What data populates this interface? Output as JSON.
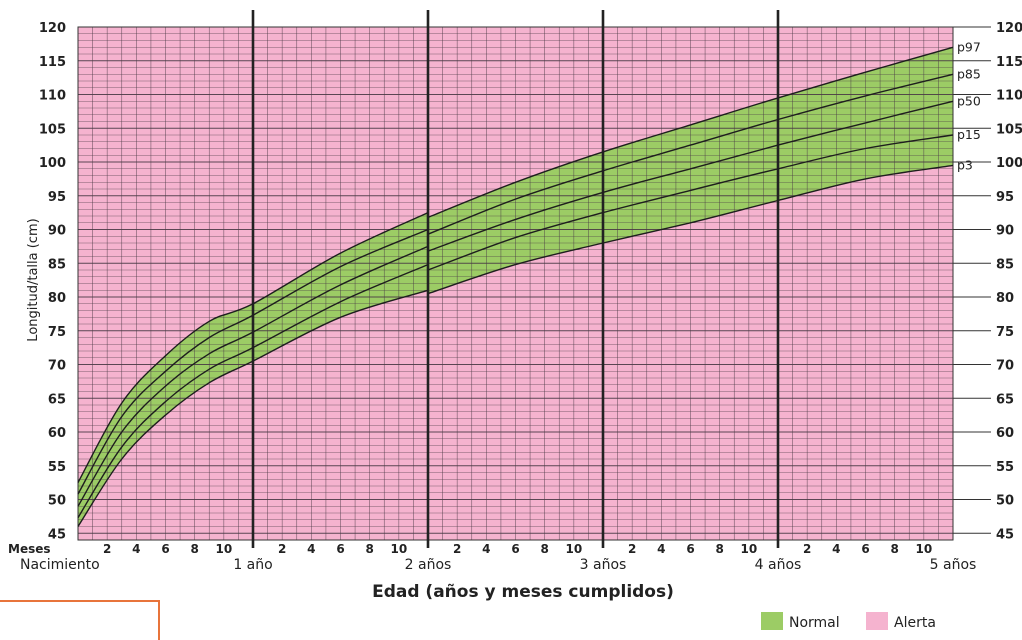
{
  "chart_data": {
    "type": "line",
    "ylabel": "Longitud/talla (cm)",
    "xlabel": "Edad (años y meses cumplidos)",
    "months_label": "Meses",
    "ylim": [
      44,
      120
    ],
    "yticks": [
      45,
      50,
      55,
      60,
      65,
      70,
      75,
      80,
      85,
      90,
      95,
      100,
      105,
      110,
      115,
      120
    ],
    "xlim_months": [
      0,
      60
    ],
    "month_ticks": [
      "2",
      "4",
      "6",
      "8",
      "10"
    ],
    "year_labels": [
      "Nacimiento",
      "1 año",
      "2 años",
      "3 años",
      "4 años",
      "5 años"
    ],
    "x": [
      0,
      3,
      6,
      9,
      12,
      18,
      24,
      24,
      30,
      36,
      42,
      48,
      54,
      60
    ],
    "series": [
      {
        "name": "p97",
        "values": [
          52.5,
          64.3,
          71.3,
          76.4,
          79.0,
          86.5,
          92.5,
          91.8,
          97.0,
          101.5,
          105.5,
          109.5,
          113.3,
          117.0
        ]
      },
      {
        "name": "p85",
        "values": [
          50.8,
          62.3,
          69.0,
          74.0,
          77.3,
          84.5,
          90.0,
          89.3,
          94.5,
          98.7,
          102.5,
          106.3,
          109.8,
          113.0
        ]
      },
      {
        "name": "p50",
        "values": [
          49.0,
          60.0,
          66.8,
          71.6,
          74.8,
          81.8,
          87.5,
          86.8,
          91.5,
          95.5,
          99.0,
          102.5,
          105.8,
          109.0
        ]
      },
      {
        "name": "p15",
        "values": [
          47.3,
          57.8,
          64.5,
          69.3,
          72.5,
          79.3,
          84.8,
          84.0,
          88.8,
          92.5,
          95.8,
          99.0,
          102.0,
          104.0
        ]
      },
      {
        "name": "p3",
        "values": [
          46.0,
          56.0,
          62.5,
          67.3,
          70.5,
          77.0,
          81.0,
          80.5,
          84.8,
          88.0,
          91.0,
          94.3,
          97.5,
          99.5
        ]
      }
    ],
    "bands": [
      {
        "name": "Normal",
        "color": "#9ccc65"
      },
      {
        "name": "Alerta",
        "color": "#f5b3cf"
      }
    ],
    "grid": true,
    "legend": "bottom-right"
  }
}
